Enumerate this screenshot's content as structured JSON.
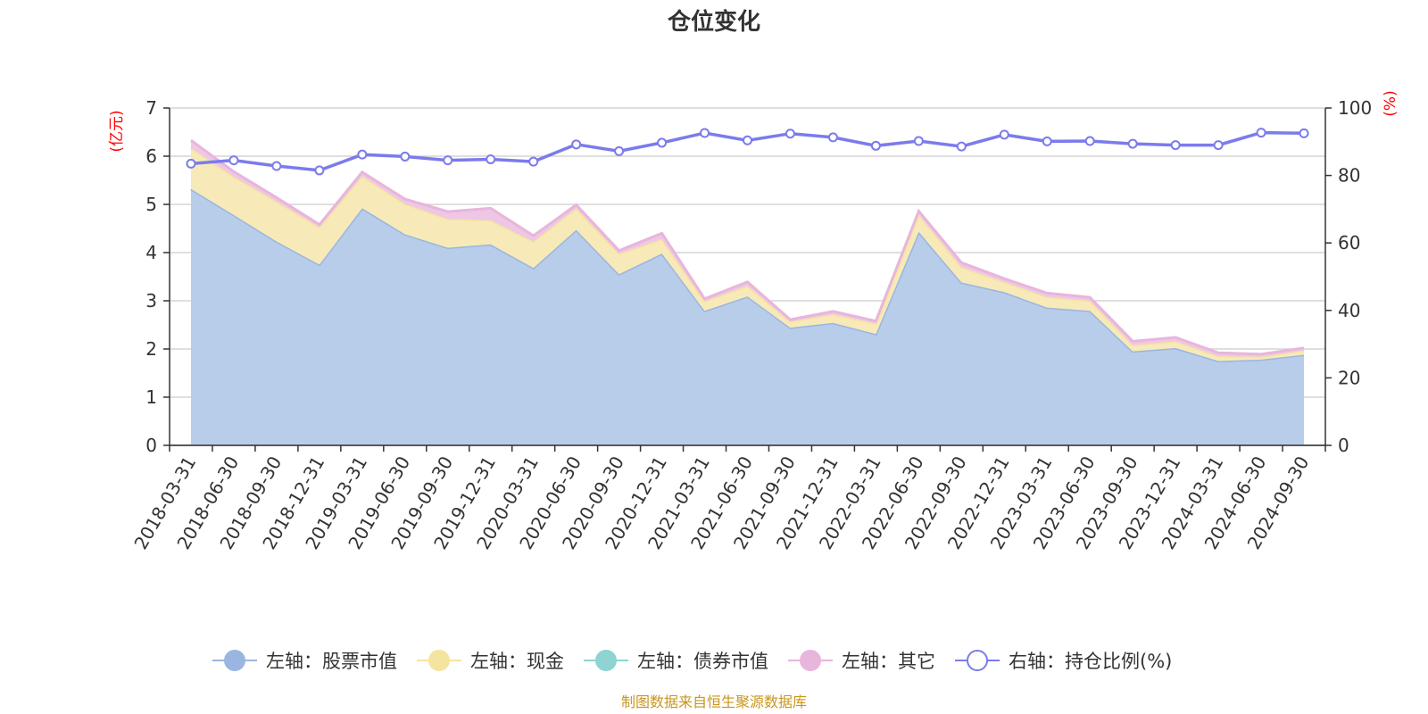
{
  "chart_data": {
    "type": "area",
    "title": "仓位变化",
    "left_unit": "(亿元)",
    "right_unit": "(%)",
    "x": [
      "2018-03-31",
      "2018-06-30",
      "2018-09-30",
      "2018-12-31",
      "2019-03-31",
      "2019-06-30",
      "2019-09-30",
      "2019-12-31",
      "2020-03-31",
      "2020-06-30",
      "2020-09-30",
      "2020-12-31",
      "2021-03-31",
      "2021-06-30",
      "2021-09-30",
      "2021-12-31",
      "2022-03-31",
      "2022-06-30",
      "2022-09-30",
      "2022-12-31",
      "2023-03-31",
      "2023-06-30",
      "2023-09-30",
      "2023-12-31",
      "2024-03-31",
      "2024-06-30",
      "2024-09-30"
    ],
    "y_left": {
      "min": 0,
      "max": 7,
      "ticks": [
        0,
        1,
        2,
        3,
        4,
        5,
        6,
        7
      ]
    },
    "y_right": {
      "min": 0,
      "max": 100,
      "ticks": [
        0,
        20,
        40,
        60,
        80,
        100
      ]
    },
    "series": [
      {
        "name": "左轴：股票市值",
        "axis": "left",
        "stack": true,
        "color": "#9ab6e0",
        "fill": "#b8cdea",
        "values": [
          5.32,
          4.78,
          4.23,
          3.75,
          4.92,
          4.38,
          4.1,
          4.17,
          3.68,
          4.47,
          3.55,
          3.98,
          2.79,
          3.09,
          2.44,
          2.54,
          2.31,
          4.43,
          3.38,
          3.18,
          2.86,
          2.79,
          1.95,
          2.02,
          1.75,
          1.78,
          1.88
        ]
      },
      {
        "name": "左轴：现金",
        "axis": "left",
        "stack": true,
        "color": "#f5e3a0",
        "fill": "#f7eab8",
        "values": [
          0.85,
          0.8,
          0.83,
          0.78,
          0.67,
          0.63,
          0.6,
          0.5,
          0.55,
          0.45,
          0.43,
          0.3,
          0.2,
          0.22,
          0.13,
          0.18,
          0.22,
          0.36,
          0.32,
          0.21,
          0.22,
          0.21,
          0.13,
          0.14,
          0.1,
          0.06,
          0.09
        ]
      },
      {
        "name": "左轴：债券市值",
        "axis": "left",
        "stack": true,
        "color": "#8fd3d3",
        "fill": "#b3e3e3",
        "values": [
          0,
          0,
          0,
          0,
          0,
          0,
          0,
          0,
          0,
          0,
          0,
          0,
          0,
          0,
          0,
          0,
          0,
          0,
          0,
          0,
          0,
          0,
          0,
          0,
          0,
          0,
          0
        ]
      },
      {
        "name": "左轴：其它",
        "axis": "left",
        "stack": true,
        "color": "#e8b5dc",
        "fill": "#eec7e5",
        "values": [
          0.16,
          0.1,
          0.08,
          0.05,
          0.08,
          0.1,
          0.15,
          0.25,
          0.12,
          0.07,
          0.06,
          0.12,
          0.05,
          0.08,
          0.04,
          0.06,
          0.05,
          0.07,
          0.09,
          0.07,
          0.08,
          0.07,
          0.08,
          0.08,
          0.07,
          0.05,
          0.05
        ]
      },
      {
        "name": "右轴：持仓比例(%)",
        "axis": "right",
        "stack": false,
        "color": "#7b7bec",
        "values": [
          83.5,
          84.5,
          82.8,
          81.5,
          86.2,
          85.6,
          84.5,
          84.8,
          84.1,
          89.2,
          87.2,
          89.7,
          92.6,
          90.4,
          92.4,
          91.3,
          88.8,
          90.2,
          88.6,
          92.1,
          90.1,
          90.2,
          89.4,
          89.0,
          89.0,
          92.7,
          92.5
        ]
      }
    ],
    "legend_position": "bottom"
  },
  "source_text": "制图数据来自恒生聚源数据库"
}
